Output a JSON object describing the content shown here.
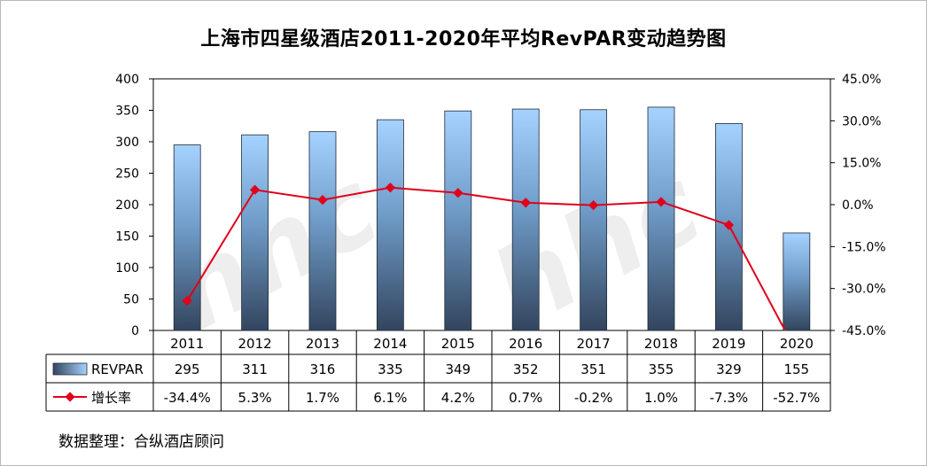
{
  "chart_data": {
    "type": "bar+line",
    "title": "上海市四星级酒店2011-2020年平均RevPAR变动趋势图",
    "categories": [
      "2011",
      "2012",
      "2013",
      "2014",
      "2015",
      "2016",
      "2017",
      "2018",
      "2019",
      "2020"
    ],
    "series": [
      {
        "name": "REVPAR",
        "type": "bar",
        "axis": "left",
        "values": [
          295,
          311,
          316,
          335,
          349,
          352,
          351,
          355,
          329,
          155
        ],
        "table_labels": [
          "295",
          "311",
          "316",
          "335",
          "349",
          "352",
          "351",
          "355",
          "329",
          "155"
        ]
      },
      {
        "name": "增长率",
        "type": "line",
        "axis": "right",
        "values": [
          -34.4,
          5.3,
          1.7,
          6.1,
          4.2,
          0.7,
          -0.2,
          1.0,
          -7.3,
          -52.7
        ],
        "table_labels": [
          "-34.4%",
          "5.3%",
          "1.7%",
          "6.1%",
          "4.2%",
          "0.7%",
          "-0.2%",
          "1.0%",
          "-7.3%",
          "-52.7%"
        ]
      }
    ],
    "y_left": {
      "range": [
        0,
        400
      ],
      "ticks": [
        0,
        50,
        100,
        150,
        200,
        250,
        300,
        350,
        400
      ],
      "tick_labels": [
        "0",
        "50",
        "100",
        "150",
        "200",
        "250",
        "300",
        "350",
        "400"
      ]
    },
    "y_right": {
      "range": [
        -45,
        45
      ],
      "ticks": [
        -45,
        -30,
        -15,
        0,
        15,
        30,
        45
      ],
      "tick_labels": [
        "-45.0%",
        "-30.0%",
        "-15.0%",
        "0.0%",
        "15.0%",
        "30.0%",
        "45.0%"
      ]
    },
    "grid": false,
    "legend": "data-table"
  },
  "source_text": "数据整理：合纵酒店顾问",
  "colors": {
    "bar_top": "#a6d2ff",
    "bar_mid": "#6f9cc8",
    "bar_bottom": "#33455e",
    "line": "#e0001b",
    "axis": "#000000",
    "table_border": "#000000"
  }
}
